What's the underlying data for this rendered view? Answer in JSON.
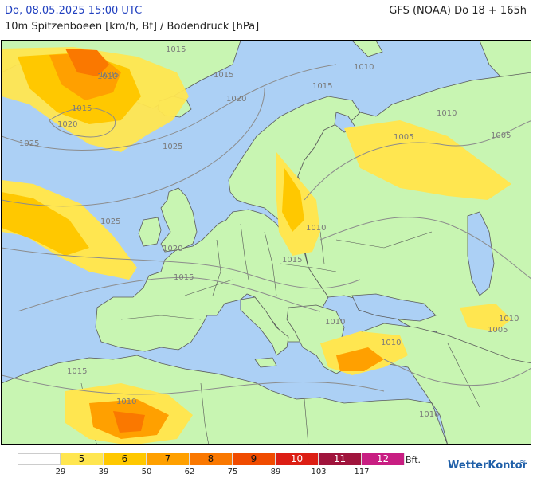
{
  "header": {
    "datetime": "Do, 08.05.2025 15:00 UTC",
    "model_run": "GFS (NOAA) Do 18 + 165h",
    "subtitle": "10m Spitzenboeen [km/h, Bf] / Bodendruck [hPa]"
  },
  "colors": {
    "sea": "#acd0f5",
    "land": "#c8f5b2",
    "isobar": "#8c8c8c",
    "border": "#555555"
  },
  "isobars": [
    {
      "label": "1005"
    },
    {
      "label": "1010"
    },
    {
      "label": "1015"
    },
    {
      "label": "1020"
    },
    {
      "label": "1025"
    }
  ],
  "legend": {
    "unit": "Bft.",
    "classes": [
      {
        "bft": "",
        "color": "#ffffff"
      },
      {
        "bft": "5",
        "color": "#ffe650"
      },
      {
        "bft": "6",
        "color": "#ffc800"
      },
      {
        "bft": "7",
        "color": "#ffa000"
      },
      {
        "bft": "8",
        "color": "#fa7800"
      },
      {
        "bft": "9",
        "color": "#f04b00"
      },
      {
        "bft": "10",
        "color": "#dc1e14"
      },
      {
        "bft": "11",
        "color": "#a0143c"
      },
      {
        "bft": "12",
        "color": "#c81e82"
      }
    ],
    "kmh_ticks": [
      "29",
      "39",
      "50",
      "62",
      "75",
      "89",
      "103",
      "117"
    ]
  },
  "logo": {
    "name": "WetterKontor",
    "mark": "≈"
  }
}
